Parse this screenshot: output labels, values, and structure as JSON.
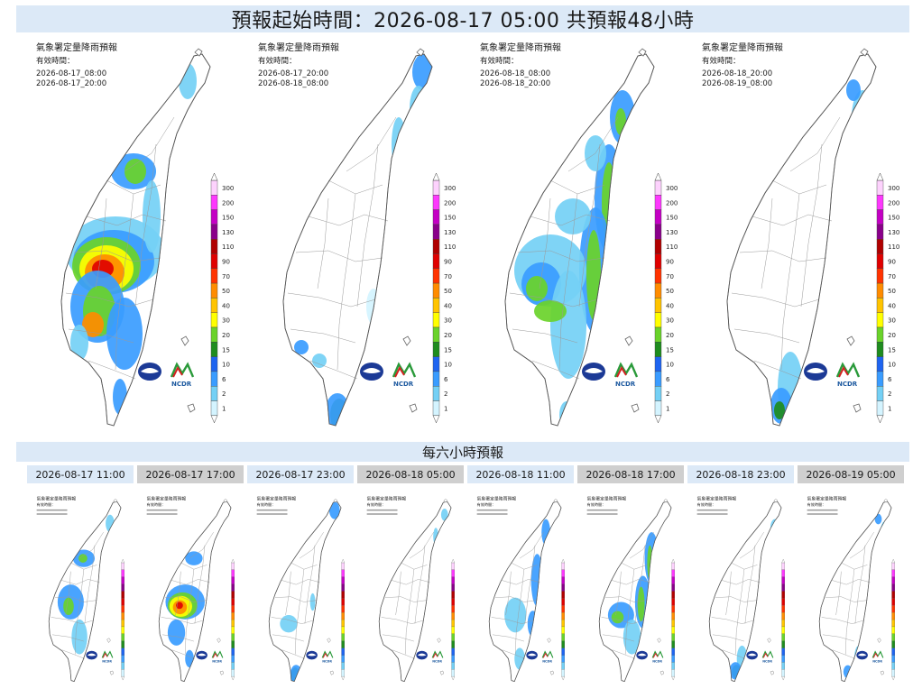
{
  "header": {
    "title": "預報起始時間：2026-08-17 05:00  共預報48小時"
  },
  "panel_common": {
    "map_title": "氣象署定量降雨預報",
    "valid_label": "有效時間：",
    "logo_text": "NCDR"
  },
  "twelve_hour_panels": [
    {
      "start": "2026-08-17_08:00",
      "end": "2026-08-17_20:00"
    },
    {
      "start": "2026-08-17_20:00",
      "end": "2026-08-18_08:00"
    },
    {
      "start": "2026-08-18_08:00",
      "end": "2026-08-18_20:00"
    },
    {
      "start": "2026-08-18_20:00",
      "end": "2026-08-19_08:00"
    }
  ],
  "legend": {
    "levels": [
      "300",
      "200",
      "150",
      "130",
      "110",
      "90",
      "70",
      "50",
      "40",
      "30",
      "20",
      "15",
      "10",
      "6",
      "2",
      "1"
    ],
    "colors": [
      "#fdd2fd",
      "#fd38fd",
      "#c400c4",
      "#8a008a",
      "#b00000",
      "#e00000",
      "#ff3300",
      "#ff8c00",
      "#ffc400",
      "#ffff00",
      "#6ad32a",
      "#1e8c1e",
      "#1e64f0",
      "#3a9cff",
      "#74d0f5",
      "#d4f4ff"
    ]
  },
  "six_hour_section": {
    "title": "每六小時預報",
    "tabs": [
      {
        "label": "2026-08-17 11:00",
        "selected": false
      },
      {
        "label": "2026-08-17 17:00",
        "selected": true
      },
      {
        "label": "2026-08-17 23:00",
        "selected": false
      },
      {
        "label": "2026-08-18 05:00",
        "selected": true
      },
      {
        "label": "2026-08-18 11:00",
        "selected": false
      },
      {
        "label": "2026-08-18 17:00",
        "selected": true
      },
      {
        "label": "2026-08-18 23:00",
        "selected": false
      },
      {
        "label": "2026-08-19 05:00",
        "selected": true
      }
    ]
  },
  "colors": {
    "banner_bg": "#dce9f7",
    "tab_light": "#dce9f7",
    "tab_dark": "#cfcfcf"
  }
}
